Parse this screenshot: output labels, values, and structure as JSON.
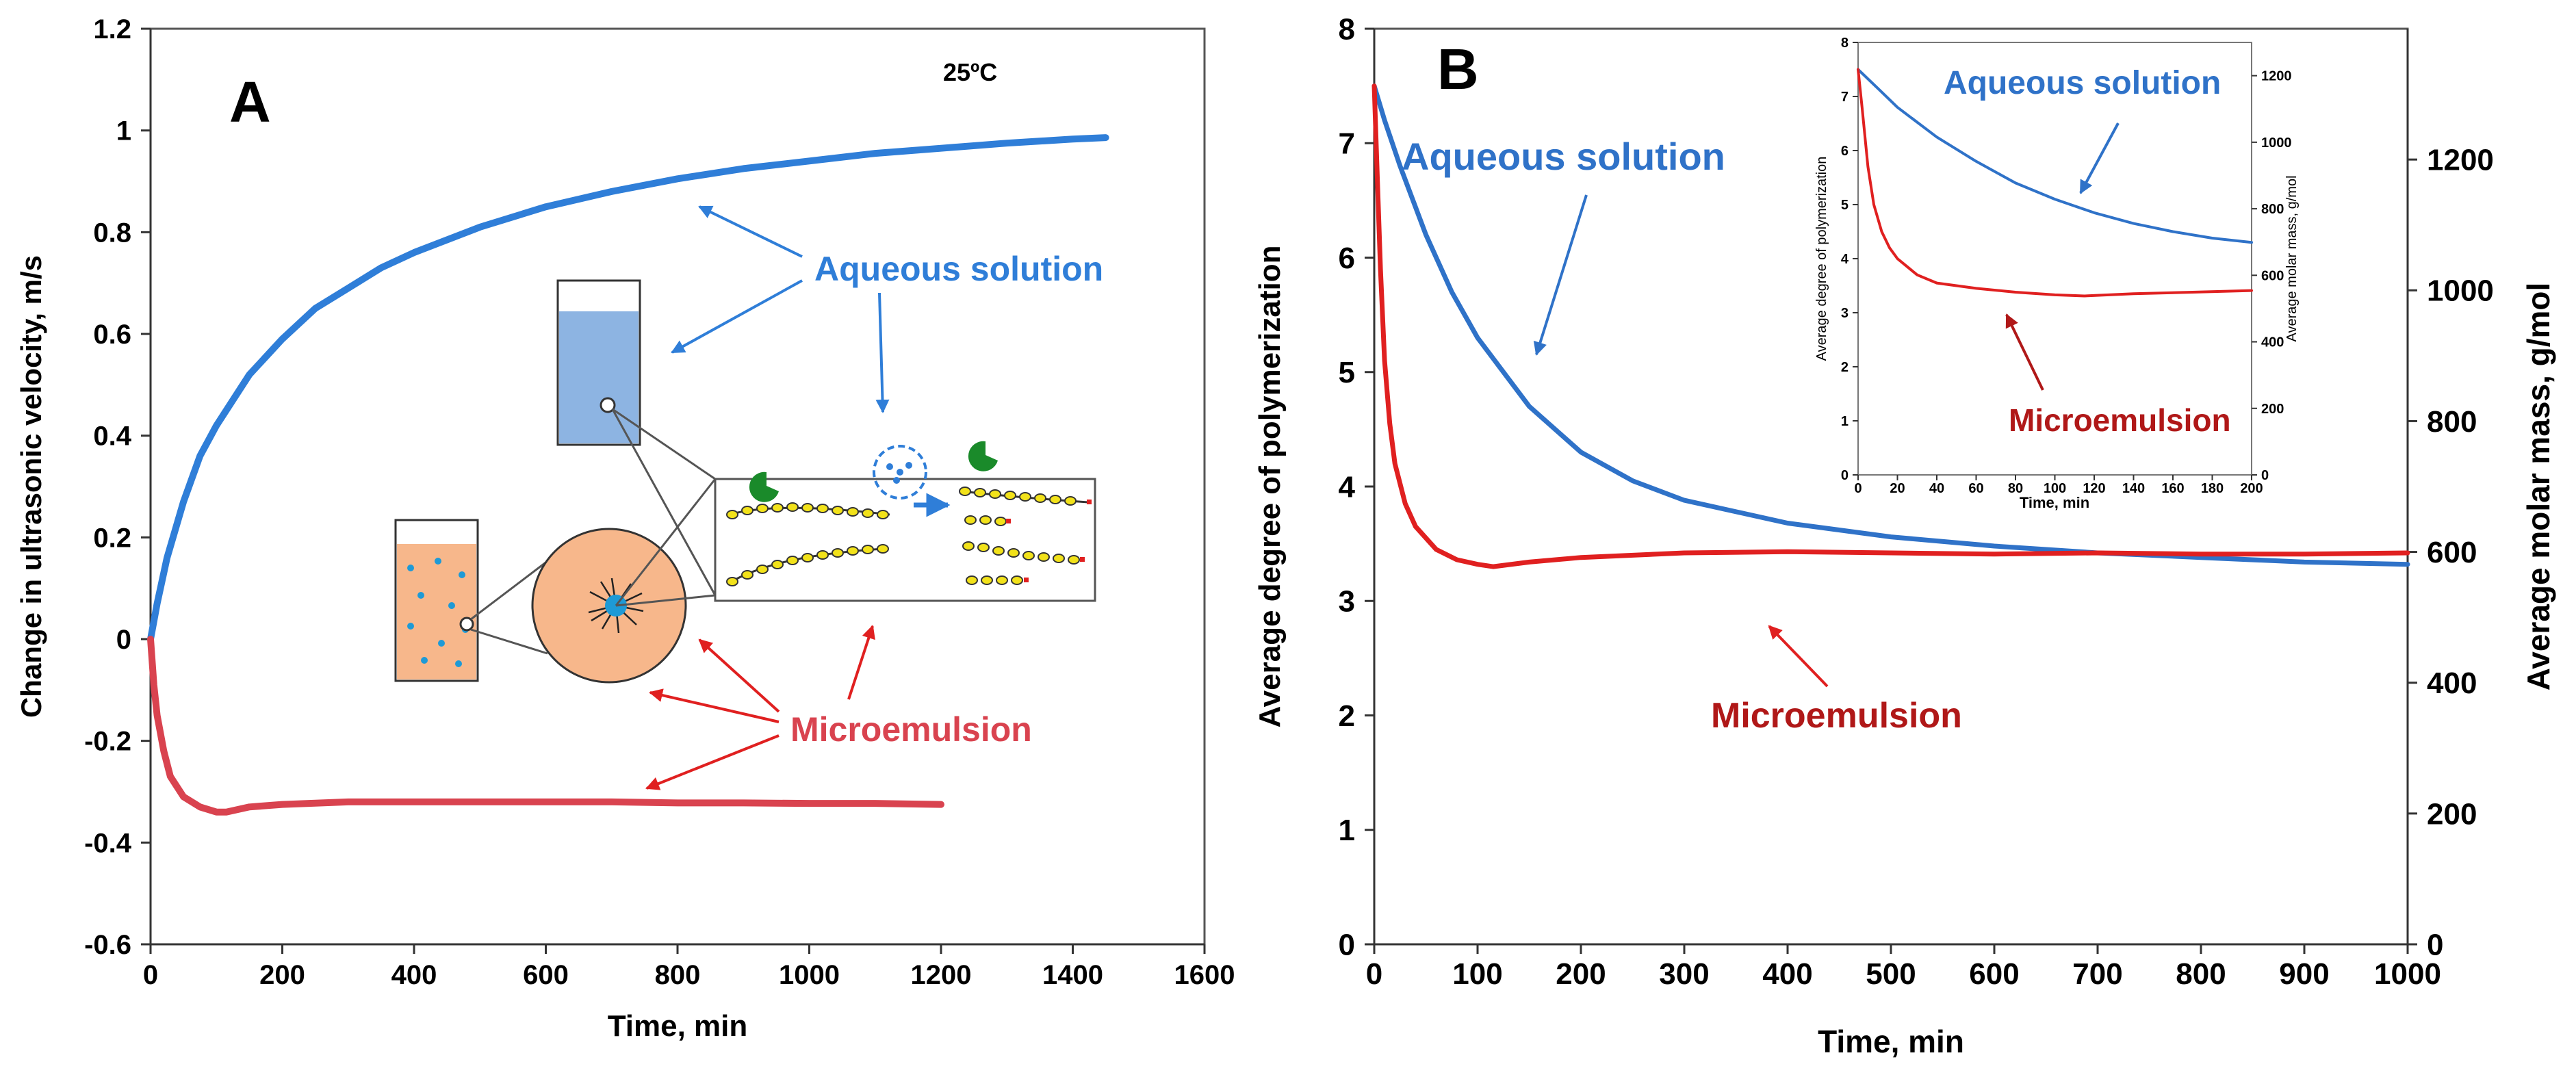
{
  "chart_data": [
    {
      "type": "line",
      "panel_label": "A",
      "annotation": "25ºC",
      "xlabel": "Time, min",
      "ylabel": "Change in ultrasonic velocity, m/s",
      "xlim": [
        0,
        1600
      ],
      "ylim": [
        -0.6,
        1.2
      ],
      "xticks": [
        0,
        200,
        400,
        600,
        800,
        1000,
        1200,
        1400,
        1600
      ],
      "yticks": [
        -0.6,
        -0.4,
        -0.2,
        0,
        0.2,
        0.4,
        0.6,
        0.8,
        1,
        1.2
      ],
      "series": [
        {
          "name": "Aqueous solution",
          "color": "#2f7ed8",
          "x": [
            0,
            10,
            25,
            50,
            75,
            100,
            150,
            200,
            250,
            300,
            350,
            400,
            500,
            600,
            700,
            800,
            900,
            1000,
            1100,
            1200,
            1300,
            1400,
            1450
          ],
          "y": [
            0,
            0.07,
            0.16,
            0.27,
            0.36,
            0.42,
            0.52,
            0.59,
            0.65,
            0.69,
            0.73,
            0.76,
            0.81,
            0.85,
            0.88,
            0.905,
            0.925,
            0.94,
            0.955,
            0.965,
            0.975,
            0.983,
            0.986
          ]
        },
        {
          "name": "Microemulsion",
          "color": "#d9434f",
          "x": [
            0,
            5,
            10,
            20,
            30,
            50,
            75,
            100,
            115,
            150,
            200,
            300,
            400,
            500,
            600,
            700,
            800,
            900,
            1000,
            1100,
            1200
          ],
          "y": [
            0,
            -0.09,
            -0.15,
            -0.22,
            -0.27,
            -0.31,
            -0.33,
            -0.34,
            -0.34,
            -0.33,
            -0.325,
            -0.32,
            -0.32,
            -0.32,
            -0.32,
            -0.32,
            -0.322,
            -0.322,
            -0.323,
            -0.323,
            -0.325
          ]
        }
      ],
      "callouts": {
        "aqueous": "Aqueous solution",
        "micro": "Microemulsion"
      }
    },
    {
      "type": "line",
      "panel_label": "B",
      "xlabel": "Time, min",
      "ylabel": "Average degree of polymerization",
      "ylabel_right": "Average  molar mass, g/mol",
      "xlim": [
        0,
        1000
      ],
      "ylim": [
        0,
        8
      ],
      "ylim_right": [
        0,
        1400
      ],
      "xticks": [
        0,
        100,
        200,
        300,
        400,
        500,
        600,
        700,
        800,
        900,
        1000
      ],
      "yticks": [
        0,
        1,
        2,
        3,
        4,
        5,
        6,
        7,
        8
      ],
      "yticks_right": [
        0,
        200,
        400,
        600,
        800,
        1000,
        1200
      ],
      "series": [
        {
          "name": "Aqueous solution",
          "color": "#2f72c8",
          "x": [
            0,
            10,
            25,
            50,
            75,
            100,
            150,
            200,
            250,
            300,
            400,
            500,
            600,
            700,
            800,
            900,
            1000
          ],
          "y": [
            7.5,
            7.2,
            6.8,
            6.2,
            5.7,
            5.3,
            4.7,
            4.3,
            4.05,
            3.88,
            3.68,
            3.56,
            3.48,
            3.42,
            3.38,
            3.34,
            3.32
          ]
        },
        {
          "name": "Microemulsion",
          "color": "#e02020",
          "x": [
            0,
            3,
            6,
            10,
            15,
            20,
            30,
            40,
            60,
            80,
            100,
            115,
            150,
            200,
            300,
            400,
            500,
            600,
            700,
            800,
            900,
            1000
          ],
          "y": [
            7.5,
            6.7,
            5.9,
            5.1,
            4.55,
            4.2,
            3.85,
            3.65,
            3.45,
            3.36,
            3.32,
            3.3,
            3.34,
            3.38,
            3.42,
            3.43,
            3.42,
            3.41,
            3.42,
            3.41,
            3.41,
            3.42
          ]
        }
      ],
      "callouts": {
        "aqueous": "Aqueous solution",
        "micro": "Microemulsion"
      },
      "inset": {
        "xlabel": "Time, min",
        "ylabel": "Average degree of polymerization",
        "ylabel_right": "Average  molar mass, g/mol",
        "xlim": [
          0,
          200
        ],
        "ylim": [
          0,
          8
        ],
        "ylim_right": [
          0,
          1300
        ],
        "xticks": [
          0,
          20,
          40,
          60,
          80,
          100,
          120,
          140,
          160,
          180,
          200
        ],
        "yticks": [
          0,
          1,
          2,
          3,
          4,
          5,
          6,
          7,
          8
        ],
        "yticks_right": [
          0,
          200,
          400,
          600,
          800,
          1000,
          1200
        ],
        "series": [
          {
            "name": "Aqueous solution",
            "color": "#2f72c8",
            "x": [
              0,
              10,
              20,
              40,
              60,
              80,
              100,
              120,
              140,
              160,
              180,
              200
            ],
            "y": [
              7.5,
              7.15,
              6.8,
              6.25,
              5.8,
              5.4,
              5.1,
              4.85,
              4.65,
              4.5,
              4.38,
              4.3
            ]
          },
          {
            "name": "Microemulsion",
            "color": "#e02020",
            "x": [
              0,
              2,
              5,
              8,
              12,
              16,
              20,
              30,
              40,
              60,
              80,
              100,
              115,
              140,
              170,
              200
            ],
            "y": [
              7.5,
              6.8,
              5.7,
              5.0,
              4.5,
              4.2,
              4.0,
              3.7,
              3.55,
              3.45,
              3.38,
              3.33,
              3.31,
              3.35,
              3.38,
              3.41
            ]
          }
        ],
        "callouts": {
          "aqueous": "Aqueous solution",
          "micro": "Microemulsion"
        }
      }
    }
  ]
}
